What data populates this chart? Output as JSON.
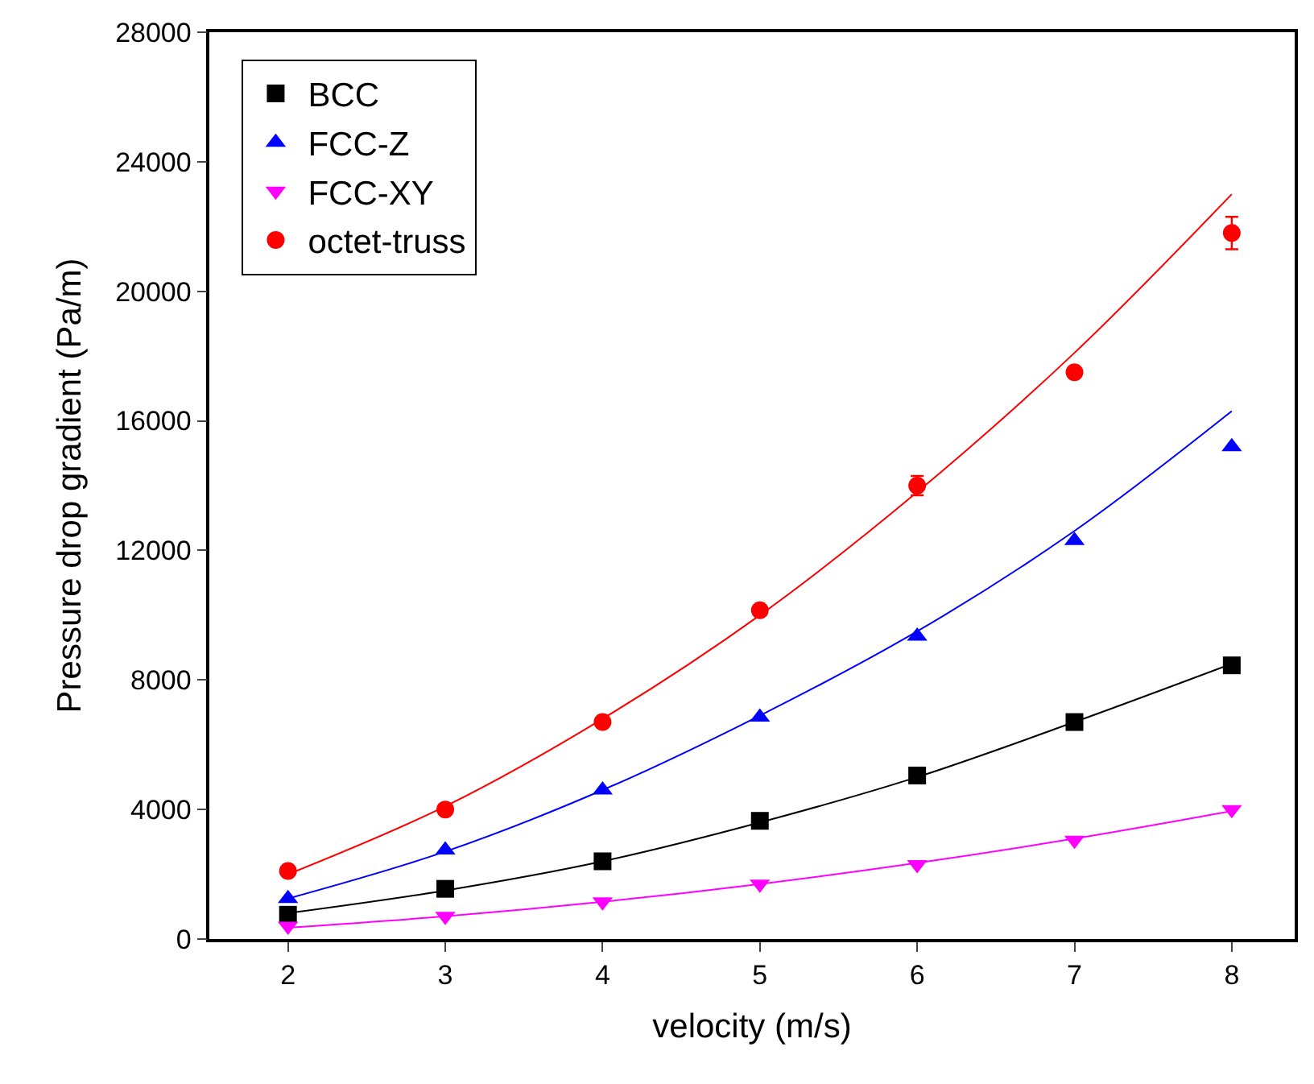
{
  "chart_data": {
    "type": "scatter",
    "xlabel": "velocity (m/s)",
    "ylabel": "Pressure drop gradient (Pa/m)",
    "x": [
      2,
      3,
      4,
      5,
      6,
      7,
      8
    ],
    "series": [
      {
        "name": "BCC",
        "color": "#000000",
        "marker": "square",
        "values": [
          750,
          1550,
          2400,
          3650,
          5050,
          6700,
          8450
        ]
      },
      {
        "name": "FCC-Z",
        "color": "#0000ff",
        "marker": "triangle",
        "values": [
          1250,
          2750,
          4600,
          6850,
          9350,
          12300,
          15200
        ]
      },
      {
        "name": "FCC-XY",
        "color": "#ff00ff",
        "marker": "triangle-down",
        "values": [
          400,
          700,
          1150,
          1700,
          2300,
          3050,
          4000
        ]
      },
      {
        "name": "octet-truss",
        "color": "#ff0000",
        "marker": "circle",
        "values": [
          2100,
          4000,
          6700,
          10150,
          14000,
          17500,
          21800
        ],
        "errors": [
          null,
          null,
          null,
          null,
          300,
          null,
          500
        ]
      },
      {
        "type": "line",
        "color": "#000000",
        "x": [
          2,
          3,
          4,
          5,
          6,
          7,
          8
        ],
        "values": [
          800,
          1500,
          2400,
          3600,
          5000,
          6700,
          8500
        ]
      },
      {
        "type": "line",
        "color": "#0000ff",
        "x": [
          2,
          3,
          4,
          5,
          6,
          7,
          8
        ],
        "values": [
          1250,
          2700,
          4600,
          6900,
          9500,
          12600,
          16300
        ]
      },
      {
        "type": "line",
        "color": "#ff00ff",
        "x": [
          2,
          3,
          4,
          5,
          6,
          7,
          8
        ],
        "values": [
          350,
          700,
          1150,
          1700,
          2350,
          3100,
          3950
        ]
      },
      {
        "type": "line",
        "color": "#ff0000",
        "x": [
          2,
          3,
          4,
          5,
          6,
          7,
          8
        ],
        "values": [
          2000,
          4100,
          6800,
          10000,
          13800,
          18100,
          23000
        ]
      }
    ],
    "xlim": [
      1.5,
      8.4
    ],
    "xticks": [
      2,
      3,
      4,
      5,
      6,
      7,
      8
    ],
    "ylim": [
      0,
      28000
    ],
    "yticks": [
      0,
      4000,
      8000,
      12000,
      16000,
      20000,
      24000,
      28000
    ],
    "legend": "top left"
  }
}
